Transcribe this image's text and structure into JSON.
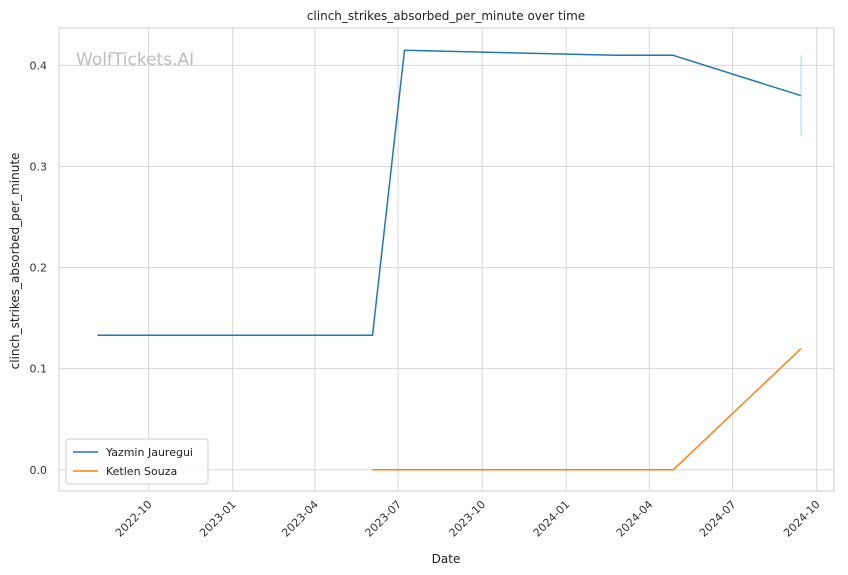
{
  "chart_data": {
    "type": "line",
    "title": "clinch_strikes_absorbed_per_minute over time",
    "xlabel": "Date",
    "ylabel": "clinch_strikes_absorbed_per_minute",
    "watermark": "WolfTickets.AI",
    "x_ticks": [
      "2022-10",
      "2023-01",
      "2023-04",
      "2023-07",
      "2023-10",
      "2024-01",
      "2024-04",
      "2024-07",
      "2024-10"
    ],
    "y_ticks": [
      "0.0",
      "0.1",
      "0.2",
      "0.3",
      "0.4"
    ],
    "xlim": [
      "2022-06-25",
      "2024-10-20"
    ],
    "ylim": [
      -0.021,
      0.437
    ],
    "grid": true,
    "legend_position": "lower-left",
    "series": [
      {
        "name": "Yazmin Jauregui",
        "color": "#1f77b4",
        "points": [
          {
            "x": "2022-08-06",
            "y": 0.133
          },
          {
            "x": "2023-06-03",
            "y": 0.133
          },
          {
            "x": "2023-07-08",
            "y": 0.415
          },
          {
            "x": "2024-02-24",
            "y": 0.41
          },
          {
            "x": "2024-04-27",
            "y": 0.41
          },
          {
            "x": "2024-09-14",
            "y": 0.37
          }
        ]
      },
      {
        "name": "Ketlen Souza",
        "color": "#ff7f0e",
        "points": [
          {
            "x": "2023-06-03",
            "y": 0.0
          },
          {
            "x": "2024-04-27",
            "y": 0.0
          },
          {
            "x": "2024-09-14",
            "y": 0.12
          }
        ]
      }
    ],
    "error_bar": {
      "x": "2024-09-14",
      "low": 0.33,
      "high": 0.41,
      "color": "#9ecae1"
    }
  }
}
